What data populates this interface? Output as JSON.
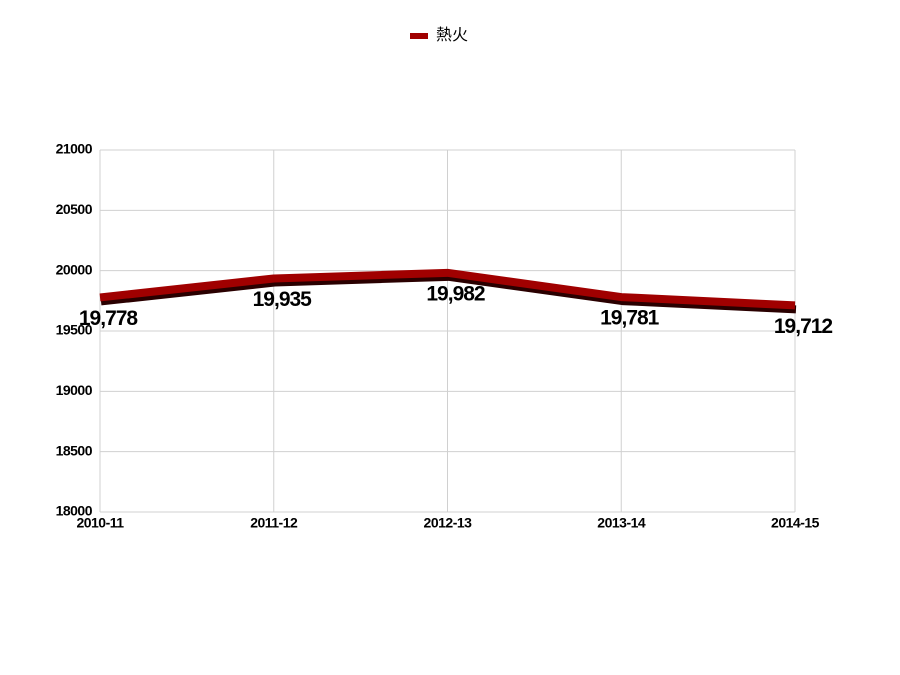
{
  "chart_data": {
    "type": "line",
    "categories": [
      "2010-11",
      "2011-12",
      "2012-13",
      "2013-14",
      "2014-15"
    ],
    "series": [
      {
        "name": "熱火",
        "color": "#a00000",
        "values": [
          19778,
          19935,
          19982,
          19781,
          19712
        ],
        "value_labels": [
          "19,778",
          "19,935",
          "19,982",
          "19,781",
          "19,712"
        ]
      }
    ],
    "ylim": [
      18000,
      21000
    ],
    "yticks": [
      18000,
      18500,
      19000,
      19500,
      20000,
      20500,
      21000
    ],
    "grid": true,
    "legend": "top"
  }
}
